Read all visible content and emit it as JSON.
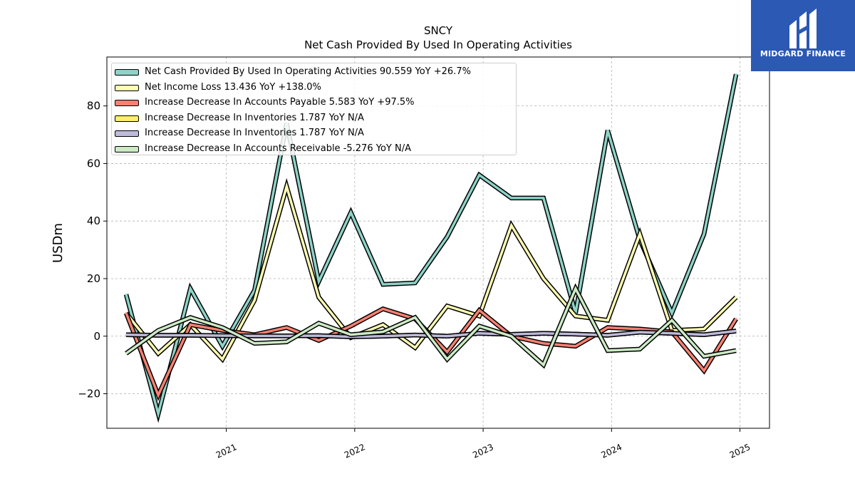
{
  "chart_data": {
    "type": "line",
    "title": "SNCY",
    "subtitle": "Net Cash Provided By Used In Operating Activities",
    "ylabel": "USDm",
    "xlabel": "",
    "ylim": [
      -32,
      97
    ],
    "xlim": [
      2020.07,
      2025.23
    ],
    "yticks": [
      -20,
      0,
      20,
      40,
      60,
      80
    ],
    "ytick_labels": [
      "−20",
      "0",
      "20",
      "40",
      "60",
      "80"
    ],
    "xticks": [
      2021,
      2022,
      2023,
      2024,
      2025
    ],
    "xtick_labels": [
      "2021",
      "2022",
      "2023",
      "2024",
      "2025"
    ],
    "grid": true,
    "legend_position": "top-left",
    "x": [
      2020.22,
      2020.47,
      2020.72,
      2020.97,
      2021.22,
      2021.47,
      2021.72,
      2021.97,
      2022.22,
      2022.47,
      2022.72,
      2022.97,
      2023.22,
      2023.47,
      2023.72,
      2023.97,
      2024.22,
      2024.47,
      2024.72,
      2024.97
    ],
    "series": [
      {
        "name": "Net Cash Provided By Used In Operating Activities  90.559 YoY +26.7%",
        "color": "#8dd3c7",
        "values": [
          14.5,
          -27,
          16.5,
          -3.5,
          16,
          74,
          19,
          43,
          18,
          18.5,
          34.5,
          56,
          48,
          48,
          8,
          71.5,
          33.5,
          8,
          35.5,
          91
        ]
      },
      {
        "name": "Net Income Loss  13.436 YoY +138.0%",
        "color": "#ffffb3",
        "values": [
          8,
          -6,
          4,
          -8,
          12.5,
          52,
          13.5,
          -0.5,
          4,
          -4,
          10.5,
          7,
          38.5,
          20,
          7,
          5.5,
          35.5,
          2,
          2.5,
          13.5
        ]
      },
      {
        "name": "Increase Decrease In Accounts Payable  5.583 YoY +97.5%",
        "color": "#fb8072",
        "values": [
          8,
          -20.5,
          4,
          2,
          0.5,
          3,
          -1.5,
          3.5,
          9.5,
          6,
          -5.5,
          9,
          0,
          -2.5,
          -3.5,
          3,
          2.5,
          1.5,
          -12,
          6
        ]
      },
      {
        "name": "Increase Decrease In Inventories  1.787 YoY N/A",
        "color": "#ffed6f",
        "values": [
          0.5,
          0.3,
          0.3,
          0.2,
          0.1,
          0.1,
          0.2,
          -0.2,
          0,
          0.4,
          0,
          1,
          0.6,
          1,
          0.7,
          0.3,
          1.4,
          1,
          0.5,
          1.8
        ]
      },
      {
        "name": "Increase Decrease In Inventories  1.787 YoY N/A",
        "color": "#bebada",
        "values": [
          0.5,
          0.3,
          0.3,
          0.2,
          0.1,
          0.1,
          0.2,
          -0.2,
          0,
          0.4,
          0,
          1,
          0.6,
          1,
          0.7,
          0.3,
          1.4,
          1,
          0.5,
          1.8
        ]
      },
      {
        "name": "Increase Decrease In Accounts Receivable  -5.276 YoY N/A",
        "color": "#ccebc5",
        "values": [
          -6,
          2,
          6.5,
          3,
          -2.5,
          -2,
          4.5,
          0.5,
          1.5,
          6.5,
          -8,
          3.5,
          0,
          -10,
          16.5,
          -5,
          -4.5,
          5.5,
          -7,
          -5
        ]
      }
    ]
  },
  "logo": {
    "text": "MIDGARD FINANCE",
    "background": "#2b59b3"
  }
}
